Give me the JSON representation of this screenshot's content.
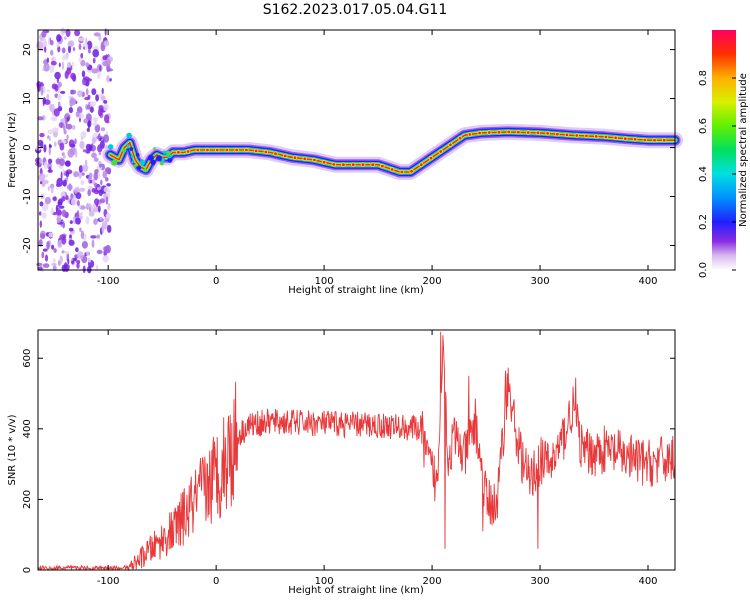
{
  "title": "S162.2023.017.05.04.G11",
  "chart_data": [
    {
      "type": "heatmap",
      "name": "spectrogram",
      "xlabel": "Height of straight line (km)",
      "ylabel": "Frequency (Hz)",
      "xlim": [
        -165,
        425
      ],
      "ylim": [
        -25,
        24
      ],
      "xticks": [
        -100,
        0,
        100,
        200,
        300,
        400
      ],
      "yticks": [
        -20,
        -10,
        0,
        10,
        20
      ],
      "colorbar": {
        "label": "Normalized spectral amplitude",
        "range": [
          0,
          1
        ],
        "ticks": [
          "0.0",
          "0.2",
          "0.4",
          "0.6",
          "0.8"
        ],
        "tick_values": [
          0.0,
          0.2,
          0.4,
          0.6,
          0.8
        ]
      },
      "noise_region_x": [
        -165,
        -98
      ],
      "ridge": {
        "x": [
          -98,
          -90,
          -85,
          -80,
          -75,
          -70,
          -65,
          -60,
          -55,
          -50,
          -45,
          -40,
          -30,
          -20,
          0,
          30,
          50,
          70,
          90,
          110,
          130,
          150,
          170,
          180,
          190,
          200,
          210,
          220,
          230,
          245,
          270,
          300,
          330,
          360,
          380,
          400,
          425
        ],
        "y": [
          -1.5,
          -2.5,
          0,
          1,
          -2.5,
          -4,
          -4.5,
          -2.5,
          -1.5,
          -2,
          -2,
          -1,
          -1,
          -0.5,
          -0.5,
          -0.5,
          -1,
          -2,
          -2.5,
          -3.5,
          -3.5,
          -3.5,
          -5,
          -5,
          -3.5,
          -2,
          -0.5,
          1,
          2.5,
          3,
          3.2,
          3,
          2.5,
          2.2,
          1.8,
          1.5,
          1.5
        ]
      }
    },
    {
      "type": "line",
      "name": "snr",
      "xlabel": "Height of straight line (km)",
      "ylabel": "SNR (10 * v/v)",
      "xlim": [
        -165,
        425
      ],
      "ylim": [
        0,
        680
      ],
      "xticks": [
        -100,
        0,
        100,
        200,
        300,
        400
      ],
      "yticks": [
        0,
        200,
        400,
        600
      ],
      "color": "#e8383a",
      "envelope": {
        "x": [
          -165,
          -80,
          -75,
          -60,
          -40,
          -20,
          0,
          10,
          20,
          30,
          50,
          100,
          150,
          190,
          195,
          205,
          210,
          215,
          220,
          230,
          240,
          250,
          260,
          270,
          280,
          290,
          300,
          310,
          320,
          330,
          340,
          360,
          400,
          425
        ],
        "y": [
          5,
          5,
          20,
          60,
          110,
          190,
          270,
          320,
          380,
          410,
          420,
          415,
          410,
          400,
          320,
          240,
          670,
          300,
          380,
          320,
          420,
          200,
          180,
          530,
          350,
          250,
          310,
          300,
          360,
          460,
          330,
          340,
          300,
          320
        ]
      },
      "spikes": [
        {
          "x": 208,
          "y": 675
        },
        {
          "x": 212,
          "y": 60
        },
        {
          "x": 234,
          "y": 550
        },
        {
          "x": 247,
          "y": 110
        },
        {
          "x": 268,
          "y": 565
        },
        {
          "x": 298,
          "y": 60
        },
        {
          "x": 333,
          "y": 545
        }
      ]
    }
  ]
}
